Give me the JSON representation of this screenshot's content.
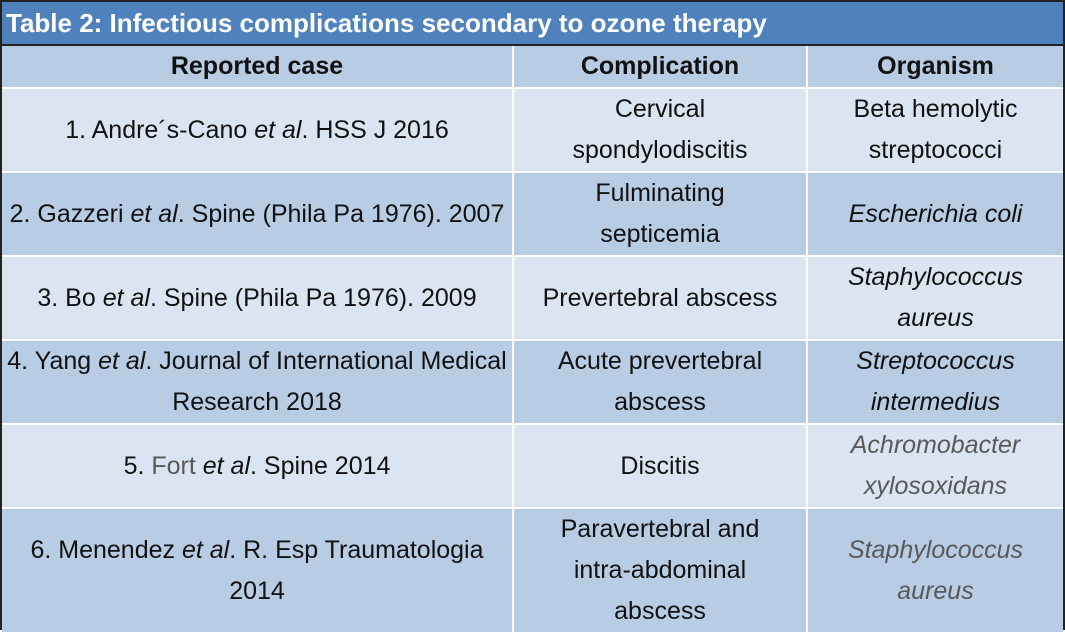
{
  "title": "Table 2: Infectious complications secondary to ozone therapy",
  "columns": [
    "Reported case",
    "Complication",
    "Organism"
  ],
  "rows": [
    {
      "case_pre": "1. Andre´s-Cano ",
      "case_em": "et al",
      "case_post": ". HSS J 2016",
      "complication": [
        "Cervical",
        "spondylodiscitis"
      ],
      "organism": [
        "Beta hemolytic",
        "streptococci"
      ],
      "organism_italic": false
    },
    {
      "case_pre": "2. Gazzeri ",
      "case_em": "et al",
      "case_post": ". Spine (Phila Pa 1976). 2007",
      "complication": [
        "Fulminating",
        "septicemia"
      ],
      "organism": [
        "Escherichia coli"
      ],
      "organism_italic": true
    },
    {
      "case_pre": "3. Bo ",
      "case_em": "et al",
      "case_post": ". Spine (Phila Pa 1976). 2009",
      "complication": [
        "Prevertebral abscess"
      ],
      "organism": [
        "Staphylococcus",
        "aureus"
      ],
      "organism_italic": true
    },
    {
      "case_pre": "4. Yang ",
      "case_em": "et al",
      "case_post": ". Journal of International Medical Research 2018",
      "complication": [
        "Acute prevertebral",
        "abscess"
      ],
      "organism": [
        "Streptococcus",
        "intermedius"
      ],
      "organism_italic": true
    },
    {
      "case_num": "5. ",
      "case_pre": "Fort ",
      "case_em": "et al",
      "case_post": ". Spine 2014",
      "complication": [
        "Discitis"
      ],
      "organism": [
        "Achromobacter",
        "xylosoxidans"
      ],
      "organism_italic": true
    },
    {
      "case_pre": "6. Menendez ",
      "case_em": "et al",
      "case_post": ". R. Esp Traumatologia 2014",
      "complication": [
        "Paravertebral and",
        "intra-abdominal",
        "abscess"
      ],
      "organism": [
        "Staphylococcus",
        "aureus"
      ],
      "organism_italic": true
    }
  ],
  "colors": {
    "title_bg": "#4f81bd",
    "row_light": "#dbe5f1",
    "row_dark": "#b8cce4",
    "muted_text": "#595959"
  }
}
